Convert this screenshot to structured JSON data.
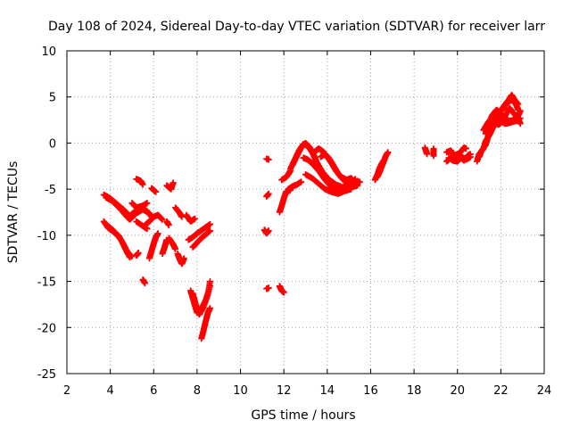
{
  "chart_data": {
    "type": "scatter",
    "title": "Day 108 of 2024, Sidereal Day-to-day VTEC variation (SDTVAR) for receiver larr",
    "xlabel": "GPS time / hours",
    "ylabel": "SDTVAR / TECUs",
    "xlim": [
      2,
      24
    ],
    "ylim": [
      -25,
      10
    ],
    "xticks": [
      2,
      4,
      6,
      8,
      10,
      12,
      14,
      16,
      18,
      20,
      22,
      24
    ],
    "yticks": [
      -25,
      -20,
      -15,
      -10,
      -5,
      0,
      5,
      10
    ],
    "grid": true,
    "marker": "+",
    "series_color": "#ff0000",
    "segments": [
      [
        [
          3.7,
          -5.6
        ],
        [
          4.0,
          -6.0
        ],
        [
          4.3,
          -6.6
        ],
        [
          4.6,
          -7.2
        ],
        [
          4.9,
          -7.9
        ],
        [
          5.1,
          -7.5
        ],
        [
          5.4,
          -7.0
        ],
        [
          5.7,
          -7.4
        ],
        [
          5.9,
          -8.0
        ]
      ],
      [
        [
          3.8,
          -5.9
        ],
        [
          4.1,
          -6.3
        ],
        [
          4.4,
          -7.0
        ],
        [
          4.7,
          -7.8
        ],
        [
          4.9,
          -8.3
        ],
        [
          5.2,
          -7.6
        ],
        [
          5.5,
          -7.2
        ],
        [
          5.8,
          -7.6
        ]
      ],
      [
        [
          3.7,
          -8.5
        ],
        [
          3.9,
          -9.2
        ],
        [
          4.2,
          -9.7
        ],
        [
          4.5,
          -10.5
        ],
        [
          4.8,
          -11.8
        ],
        [
          4.9,
          -12.4
        ]
      ],
      [
        [
          3.8,
          -8.8
        ],
        [
          4.1,
          -9.4
        ],
        [
          4.4,
          -10.1
        ],
        [
          4.6,
          -11.0
        ],
        [
          4.8,
          -12.0
        ],
        [
          5.0,
          -12.3
        ]
      ],
      [
        [
          5.2,
          -3.9
        ],
        [
          5.4,
          -4.1
        ],
        [
          5.5,
          -4.5
        ]
      ],
      [
        [
          5.0,
          -6.5
        ],
        [
          5.2,
          -7.0
        ],
        [
          5.5,
          -6.8
        ],
        [
          5.7,
          -6.5
        ]
      ],
      [
        [
          5.2,
          -8.5
        ],
        [
          5.5,
          -9.0
        ],
        [
          5.7,
          -9.3
        ]
      ],
      [
        [
          5.2,
          -12.2
        ],
        [
          5.3,
          -11.9
        ]
      ],
      [
        [
          5.5,
          -14.8
        ],
        [
          5.6,
          -15.2
        ]
      ],
      [
        [
          5.9,
          -4.9
        ],
        [
          6.1,
          -5.3
        ]
      ],
      [
        [
          6.6,
          -4.6
        ],
        [
          6.8,
          -5.0
        ],
        [
          6.9,
          -4.3
        ]
      ],
      [
        [
          5.6,
          -8.9
        ],
        [
          5.8,
          -8.5
        ],
        [
          6.0,
          -8.0
        ],
        [
          6.2,
          -7.8
        ],
        [
          6.4,
          -8.3
        ]
      ],
      [
        [
          5.8,
          -12.5
        ],
        [
          5.9,
          -11.7
        ],
        [
          6.0,
          -10.9
        ],
        [
          6.1,
          -10.2
        ],
        [
          6.2,
          -9.8
        ]
      ],
      [
        [
          6.4,
          -12.0
        ],
        [
          6.5,
          -11.3
        ],
        [
          6.6,
          -10.5
        ]
      ],
      [
        [
          6.6,
          -8.5
        ],
        [
          6.7,
          -8.9
        ]
      ],
      [
        [
          6.7,
          -10.3
        ],
        [
          6.9,
          -11.0
        ],
        [
          7.0,
          -11.5
        ]
      ],
      [
        [
          7.0,
          -7.0
        ],
        [
          7.2,
          -7.6
        ],
        [
          7.3,
          -8.0
        ]
      ],
      [
        [
          7.1,
          -12.0
        ],
        [
          7.2,
          -12.6
        ],
        [
          7.3,
          -13.1
        ],
        [
          7.4,
          -12.5
        ]
      ],
      [
        [
          7.5,
          -7.8
        ],
        [
          7.7,
          -8.5
        ],
        [
          7.9,
          -8.2
        ]
      ],
      [
        [
          7.6,
          -10.5
        ],
        [
          7.8,
          -10.2
        ],
        [
          8.0,
          -9.8
        ],
        [
          8.3,
          -9.3
        ],
        [
          8.6,
          -8.8
        ]
      ],
      [
        [
          7.8,
          -11.3
        ],
        [
          8.0,
          -10.8
        ],
        [
          8.2,
          -10.3
        ],
        [
          8.4,
          -9.9
        ],
        [
          8.6,
          -9.5
        ]
      ],
      [
        [
          7.7,
          -16.0
        ],
        [
          7.8,
          -16.8
        ],
        [
          7.9,
          -17.6
        ],
        [
          8.0,
          -18.4
        ],
        [
          8.2,
          -18.0
        ],
        [
          8.4,
          -17.0
        ],
        [
          8.6,
          -15.5
        ]
      ],
      [
        [
          7.8,
          -16.3
        ],
        [
          7.9,
          -17.2
        ],
        [
          8.0,
          -18.0
        ],
        [
          8.1,
          -18.6
        ],
        [
          8.3,
          -17.8
        ],
        [
          8.5,
          -16.4
        ],
        [
          8.6,
          -15.0
        ]
      ],
      [
        [
          8.2,
          -21.2
        ],
        [
          8.3,
          -20.3
        ],
        [
          8.4,
          -19.3
        ],
        [
          8.5,
          -18.4
        ],
        [
          8.6,
          -17.9
        ]
      ],
      [
        [
          11.2,
          -1.7
        ],
        [
          11.3,
          -1.8
        ]
      ],
      [
        [
          11.2,
          -5.8
        ],
        [
          11.3,
          -5.5
        ]
      ],
      [
        [
          11.1,
          -9.4
        ],
        [
          11.2,
          -9.8
        ],
        [
          11.3,
          -9.5
        ]
      ],
      [
        [
          11.2,
          -15.8
        ],
        [
          11.3,
          -15.7
        ]
      ],
      [
        [
          11.8,
          -15.5
        ],
        [
          11.9,
          -16.0
        ],
        [
          12.0,
          -16.2
        ]
      ],
      [
        [
          11.8,
          -7.5
        ],
        [
          11.9,
          -6.8
        ],
        [
          12.0,
          -6.0
        ],
        [
          12.1,
          -5.3
        ],
        [
          12.3,
          -5.1
        ]
      ],
      [
        [
          11.9,
          -4.0
        ],
        [
          12.1,
          -3.7
        ],
        [
          12.2,
          -3.4
        ],
        [
          12.3,
          -3.0
        ]
      ],
      [
        [
          12.2,
          -5.0
        ],
        [
          12.4,
          -4.7
        ],
        [
          12.6,
          -4.5
        ],
        [
          12.8,
          -4.2
        ]
      ],
      [
        [
          12.3,
          -2.8
        ],
        [
          12.5,
          -1.8
        ],
        [
          12.7,
          -0.8
        ],
        [
          12.9,
          -0.1
        ],
        [
          13.1,
          -0.3
        ],
        [
          13.3,
          -1.0
        ],
        [
          13.5,
          -2.0
        ],
        [
          13.8,
          -3.2
        ],
        [
          14.1,
          -4.0
        ],
        [
          14.4,
          -4.5
        ],
        [
          14.7,
          -4.8
        ],
        [
          15.0,
          -4.5
        ],
        [
          15.3,
          -3.9
        ]
      ],
      [
        [
          12.4,
          -2.4
        ],
        [
          12.6,
          -1.4
        ],
        [
          12.8,
          -0.5
        ],
        [
          13.0,
          0.0
        ],
        [
          13.2,
          -0.5
        ],
        [
          13.4,
          -1.4
        ],
        [
          13.6,
          -2.6
        ],
        [
          13.9,
          -3.7
        ],
        [
          14.2,
          -4.4
        ],
        [
          14.5,
          -4.8
        ],
        [
          14.8,
          -5.0
        ],
        [
          15.1,
          -4.6
        ],
        [
          15.4,
          -4.1
        ]
      ],
      [
        [
          12.9,
          -1.6
        ],
        [
          13.1,
          -1.8
        ],
        [
          13.3,
          -2.2
        ],
        [
          13.6,
          -3.0
        ],
        [
          13.9,
          -4.0
        ],
        [
          14.2,
          -4.8
        ],
        [
          14.5,
          -5.3
        ],
        [
          14.8,
          -5.0
        ],
        [
          15.1,
          -4.8
        ],
        [
          15.4,
          -4.6
        ]
      ],
      [
        [
          13.4,
          -1.0
        ],
        [
          13.6,
          -0.6
        ],
        [
          13.8,
          -0.9
        ],
        [
          14.0,
          -1.5
        ],
        [
          14.2,
          -2.2
        ],
        [
          14.4,
          -3.0
        ],
        [
          14.6,
          -3.6
        ],
        [
          14.9,
          -4.0
        ],
        [
          15.1,
          -3.8
        ],
        [
          15.3,
          -4.4
        ],
        [
          15.5,
          -4.2
        ]
      ],
      [
        [
          13.0,
          -3.4
        ],
        [
          13.3,
          -3.8
        ],
        [
          13.6,
          -4.4
        ],
        [
          13.9,
          -5.0
        ],
        [
          14.2,
          -5.3
        ],
        [
          14.5,
          -5.5
        ],
        [
          14.8,
          -5.2
        ],
        [
          15.1,
          -5.0
        ]
      ],
      [
        [
          13.7,
          -1.5
        ],
        [
          13.9,
          -1.2
        ],
        [
          14.1,
          -1.7
        ],
        [
          14.3,
          -2.5
        ],
        [
          14.5,
          -3.3
        ],
        [
          14.7,
          -3.9
        ],
        [
          14.9,
          -4.3
        ],
        [
          15.1,
          -4.1
        ]
      ],
      [
        [
          16.2,
          -4.0
        ],
        [
          16.3,
          -3.5
        ],
        [
          16.4,
          -2.8
        ],
        [
          16.5,
          -2.3
        ],
        [
          16.6,
          -1.9
        ]
      ],
      [
        [
          16.3,
          -3.7
        ],
        [
          16.4,
          -3.2
        ],
        [
          16.5,
          -2.6
        ],
        [
          16.6,
          -2.0
        ],
        [
          16.7,
          -1.4
        ],
        [
          16.8,
          -1.0
        ]
      ],
      [
        [
          18.5,
          -0.5
        ],
        [
          18.6,
          -1.2
        ]
      ],
      [
        [
          18.9,
          -0.6
        ],
        [
          18.9,
          -1.4
        ]
      ],
      [
        [
          19.5,
          -2.0
        ],
        [
          19.7,
          -1.6
        ],
        [
          19.9,
          -1.3
        ],
        [
          20.1,
          -1.1
        ],
        [
          20.3,
          -0.5
        ],
        [
          20.4,
          -0.6
        ]
      ],
      [
        [
          19.6,
          -1.6
        ],
        [
          19.8,
          -1.9
        ],
        [
          20.0,
          -2.0
        ],
        [
          20.2,
          -1.5
        ],
        [
          20.4,
          -1.8
        ],
        [
          20.6,
          -1.5
        ]
      ],
      [
        [
          19.5,
          -1.0
        ],
        [
          19.7,
          -0.8
        ],
        [
          19.9,
          -1.8
        ],
        [
          20.1,
          -1.4
        ],
        [
          20.3,
          -1.9
        ],
        [
          20.5,
          -1.3
        ],
        [
          20.6,
          -1.2
        ]
      ],
      [
        [
          20.9,
          -2.0
        ],
        [
          21.0,
          -1.2
        ],
        [
          21.2,
          -0.6
        ],
        [
          21.3,
          0.2
        ],
        [
          21.5,
          1.0
        ],
        [
          21.7,
          2.0
        ],
        [
          21.9,
          2.8
        ],
        [
          22.0,
          3.5
        ],
        [
          22.2,
          4.2
        ],
        [
          22.4,
          4.8
        ],
        [
          22.5,
          5.2
        ],
        [
          22.6,
          4.8
        ],
        [
          22.8,
          4.2
        ]
      ],
      [
        [
          21.0,
          -1.5
        ],
        [
          21.1,
          -0.9
        ],
        [
          21.3,
          -0.2
        ],
        [
          21.4,
          0.6
        ],
        [
          21.6,
          1.5
        ],
        [
          21.7,
          2.3
        ],
        [
          21.9,
          3.2
        ],
        [
          22.1,
          3.8
        ],
        [
          22.3,
          4.4
        ],
        [
          22.5,
          4.7
        ],
        [
          22.7,
          4.2
        ],
        [
          22.8,
          3.6
        ]
      ],
      [
        [
          21.3,
          1.0
        ],
        [
          21.5,
          1.6
        ],
        [
          21.7,
          2.2
        ],
        [
          21.9,
          2.0
        ],
        [
          22.1,
          2.4
        ],
        [
          22.3,
          3.4
        ],
        [
          22.4,
          3.8
        ],
        [
          22.6,
          3.2
        ],
        [
          22.8,
          2.6
        ],
        [
          22.9,
          2.1
        ]
      ],
      [
        [
          21.5,
          2.4
        ],
        [
          21.6,
          3.0
        ],
        [
          21.8,
          3.6
        ],
        [
          21.9,
          3.4
        ],
        [
          22.0,
          3.0
        ],
        [
          22.2,
          2.6
        ],
        [
          22.4,
          2.4
        ],
        [
          22.6,
          2.5
        ],
        [
          22.8,
          3.0
        ],
        [
          22.9,
          3.5
        ]
      ],
      [
        [
          21.2,
          1.4
        ],
        [
          21.4,
          2.2
        ],
        [
          21.6,
          2.8
        ],
        [
          21.8,
          3.0
        ],
        [
          22.0,
          2.4
        ],
        [
          22.2,
          2.1
        ],
        [
          22.4,
          2.2
        ],
        [
          22.7,
          2.4
        ],
        [
          22.9,
          2.7
        ]
      ]
    ]
  }
}
